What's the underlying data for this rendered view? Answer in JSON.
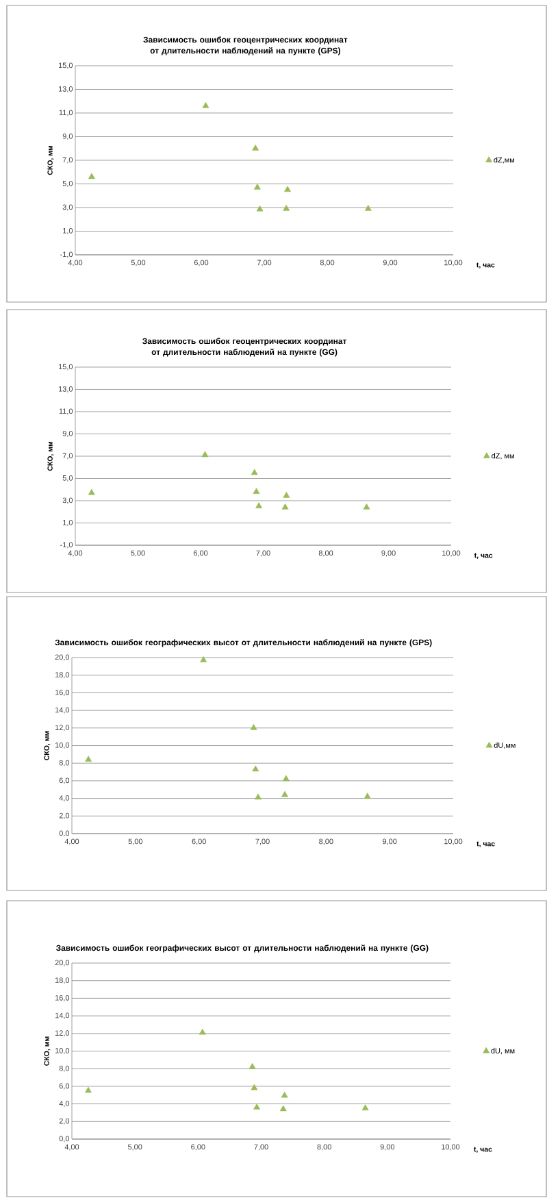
{
  "chart_data": [
    {
      "type": "scatter",
      "title": "Зависимость ошибок геоцентрических координат от длительности наблюдений на пункте (GPS)",
      "xlabel": "t, час",
      "ylabel": "СКО, мм",
      "xlim": [
        4,
        10
      ],
      "ylim": [
        -1,
        15
      ],
      "xticks": [
        {
          "value": 4,
          "label": "4,00"
        },
        {
          "value": 5,
          "label": "5,00"
        },
        {
          "value": 6,
          "label": "6,00"
        },
        {
          "value": 7,
          "label": "7,00"
        },
        {
          "value": 8,
          "label": "8,00"
        },
        {
          "value": 9,
          "label": "9,00"
        },
        {
          "value": 10,
          "label": "10,00"
        }
      ],
      "yticks": [
        {
          "value": -1,
          "label": "-1,0"
        },
        {
          "value": 1,
          "label": "1,0"
        },
        {
          "value": 3,
          "label": "3,0"
        },
        {
          "value": 5,
          "label": "5,0"
        },
        {
          "value": 7,
          "label": "7,0"
        },
        {
          "value": 9,
          "label": "9,0"
        },
        {
          "value": 11,
          "label": "11,0"
        },
        {
          "value": 13,
          "label": "13,0"
        },
        {
          "value": 15,
          "label": "15,0"
        }
      ],
      "grid": "y",
      "legend": "right",
      "marker": "triangle",
      "x": [
        4.26,
        6.07,
        6.86,
        6.89,
        6.93,
        7.35,
        7.37,
        8.65
      ],
      "series": [
        {
          "name": "dZ,мм",
          "color": "#9bbb59",
          "values": [
            5.6,
            11.6,
            8.0,
            4.7,
            2.85,
            2.9,
            4.5,
            2.9
          ]
        }
      ]
    },
    {
      "type": "scatter",
      "title": "Зависимость ошибок геоцентрических координат от длительности наблюдений на пункте (GG)",
      "xlabel": "t, час",
      "ylabel": "СКО, мм",
      "xlim": [
        4,
        10
      ],
      "ylim": [
        -1,
        15
      ],
      "xticks": [
        {
          "value": 4,
          "label": "4,00"
        },
        {
          "value": 5,
          "label": "5,00"
        },
        {
          "value": 6,
          "label": "6,00"
        },
        {
          "value": 7,
          "label": "7,00"
        },
        {
          "value": 8,
          "label": "8,00"
        },
        {
          "value": 9,
          "label": "9,00"
        },
        {
          "value": 10,
          "label": "10,00"
        }
      ],
      "yticks": [
        {
          "value": -1,
          "label": "-1,0"
        },
        {
          "value": 1,
          "label": "1,0"
        },
        {
          "value": 3,
          "label": "3,0"
        },
        {
          "value": 5,
          "label": "5,0"
        },
        {
          "value": 7,
          "label": "7,0"
        },
        {
          "value": 9,
          "label": "9,0"
        },
        {
          "value": 11,
          "label": "11,0"
        },
        {
          "value": 13,
          "label": "13,0"
        },
        {
          "value": 15,
          "label": "15,0"
        }
      ],
      "grid": "y",
      "legend": "right",
      "marker": "triangle",
      "x": [
        4.26,
        6.07,
        6.86,
        6.89,
        6.93,
        7.35,
        7.37,
        8.65
      ],
      "series": [
        {
          "name": "dZ, мм",
          "color": "#9bbb59",
          "values": [
            3.7,
            7.1,
            5.5,
            3.8,
            2.5,
            2.4,
            3.45,
            2.4
          ]
        }
      ]
    },
    {
      "type": "scatter",
      "title": "Зависимость ошибок географических высот от длительности наблюдений на пункте (GPS)",
      "xlabel": "t, час",
      "ylabel": "СКО, мм",
      "xlim": [
        4,
        10
      ],
      "ylim": [
        0,
        20
      ],
      "xticks": [
        {
          "value": 4,
          "label": "4,00"
        },
        {
          "value": 5,
          "label": "5,00"
        },
        {
          "value": 6,
          "label": "6,00"
        },
        {
          "value": 7,
          "label": "7,00"
        },
        {
          "value": 8,
          "label": "8,00"
        },
        {
          "value": 9,
          "label": "9,00"
        },
        {
          "value": 10,
          "label": "10,00"
        }
      ],
      "yticks": [
        {
          "value": 0,
          "label": "0,0"
        },
        {
          "value": 2,
          "label": "2,0"
        },
        {
          "value": 4,
          "label": "4,0"
        },
        {
          "value": 6,
          "label": "6,0"
        },
        {
          "value": 8,
          "label": "8,0"
        },
        {
          "value": 10,
          "label": "10,0"
        },
        {
          "value": 12,
          "label": "12,0"
        },
        {
          "value": 14,
          "label": "14,0"
        },
        {
          "value": 16,
          "label": "16,0"
        },
        {
          "value": 18,
          "label": "18,0"
        },
        {
          "value": 20,
          "label": "20,0"
        }
      ],
      "grid": "y",
      "legend": "right",
      "marker": "triangle",
      "x": [
        4.26,
        6.07,
        6.86,
        6.89,
        6.93,
        7.35,
        7.37,
        8.65
      ],
      "series": [
        {
          "name": "dU,мм",
          "color": "#9bbb59",
          "values": [
            8.4,
            19.7,
            12.0,
            7.3,
            4.1,
            4.4,
            6.2,
            4.2
          ]
        }
      ]
    },
    {
      "type": "scatter",
      "title": "Зависимость ошибок географических высот от длительности наблюдений на пункте (GG)",
      "xlabel": "t, час",
      "ylabel": "СКО, мм",
      "xlim": [
        4,
        10
      ],
      "ylim": [
        0,
        20
      ],
      "xticks": [
        {
          "value": 4,
          "label": "4,00"
        },
        {
          "value": 5,
          "label": "5,00"
        },
        {
          "value": 6,
          "label": "6,00"
        },
        {
          "value": 7,
          "label": "7,00"
        },
        {
          "value": 8,
          "label": "8,00"
        },
        {
          "value": 9,
          "label": "9,00"
        },
        {
          "value": 10,
          "label": "10,00"
        }
      ],
      "yticks": [
        {
          "value": 0,
          "label": "0,0"
        },
        {
          "value": 2,
          "label": "2,0"
        },
        {
          "value": 4,
          "label": "4,0"
        },
        {
          "value": 6,
          "label": "6,0"
        },
        {
          "value": 8,
          "label": "8,0"
        },
        {
          "value": 10,
          "label": "10,0"
        },
        {
          "value": 12,
          "label": "12,0"
        },
        {
          "value": 14,
          "label": "14,0"
        },
        {
          "value": 16,
          "label": "16,0"
        },
        {
          "value": 18,
          "label": "18,0"
        },
        {
          "value": 20,
          "label": "20,0"
        }
      ],
      "grid": "y",
      "legend": "right",
      "marker": "triangle",
      "x": [
        4.26,
        6.07,
        6.86,
        6.89,
        6.93,
        7.35,
        7.37,
        8.65
      ],
      "series": [
        {
          "name": "dU, мм",
          "color": "#9bbb59",
          "values": [
            5.5,
            12.1,
            8.2,
            5.8,
            3.6,
            3.4,
            4.95,
            3.5
          ]
        }
      ]
    }
  ]
}
